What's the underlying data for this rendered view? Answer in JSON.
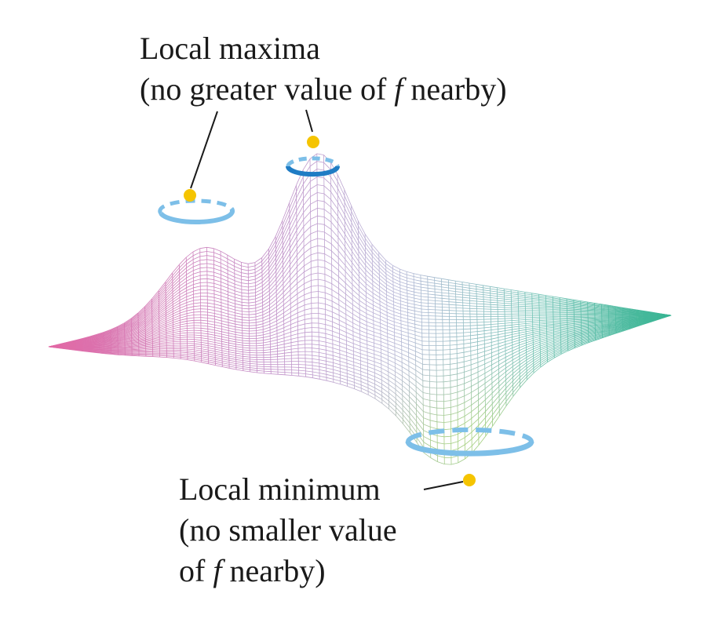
{
  "labels": {
    "maxima": {
      "line1": "Local maxima",
      "line2_pre": "(no greater value of ",
      "line2_var": "f",
      "line2_post": " nearby)"
    },
    "minimum": {
      "line1": "Local minimum",
      "line2": "(no smaller value",
      "line3_pre": "of ",
      "line3_var": "f",
      "line3_post": " nearby)"
    }
  },
  "colors": {
    "marker": "#f5c400",
    "ring_light": "#7dbfe8",
    "ring_dark": "#1f7cc4",
    "leader_line": "#1a1a1a",
    "mesh_left": "#e26aa6",
    "mesh_center": "#b9b3d8",
    "mesh_right": "#37b592",
    "mesh_bottom": "#a8d46a"
  },
  "features": {
    "local_maxima_count": 2,
    "local_minimum_count": 1
  }
}
